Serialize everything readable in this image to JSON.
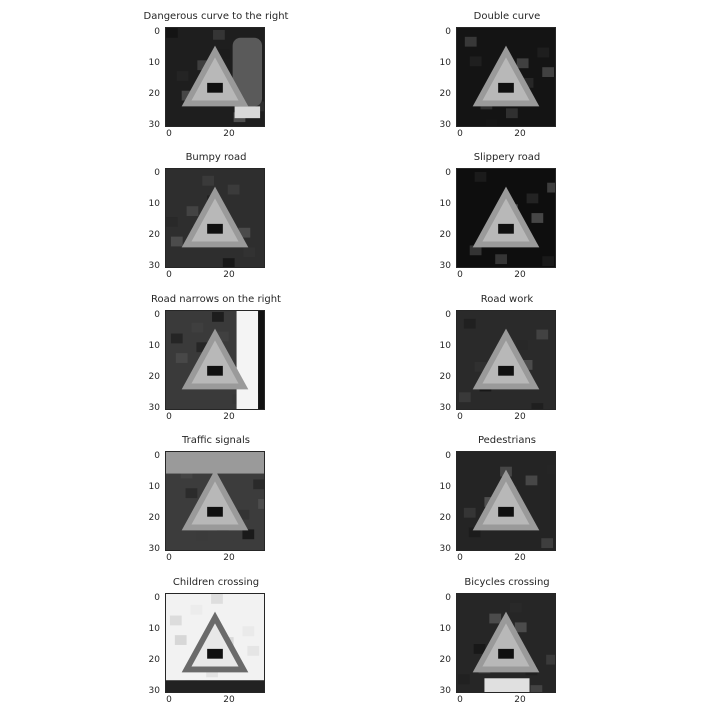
{
  "axis": {
    "y_ticks": [
      "0",
      "10",
      "20",
      "30"
    ],
    "x_ticks": [
      "0",
      "20"
    ]
  },
  "panels": [
    {
      "title": "Dangerous curve to the right",
      "bg": "#1e1e1e",
      "glyph": "curve-right"
    },
    {
      "title": "Double curve",
      "bg": "#141414",
      "glyph": "double-curve"
    },
    {
      "title": "Bumpy road",
      "bg": "#2e2e2e",
      "glyph": "bumpy-road"
    },
    {
      "title": "Slippery road",
      "bg": "#0e0e0e",
      "glyph": "slippery-road"
    },
    {
      "title": "Road narrows on the right",
      "bg": "#3a3a3a",
      "glyph": "road-narrows"
    },
    {
      "title": "Road work",
      "bg": "#2a2a2a",
      "glyph": "road-work"
    },
    {
      "title": "Traffic signals",
      "bg": "#3c3c3c",
      "glyph": "traffic-signals"
    },
    {
      "title": "Pedestrians",
      "bg": "#242424",
      "glyph": "pedestrian"
    },
    {
      "title": "Children crossing",
      "bg": "#f2f2f2",
      "glyph": "children"
    },
    {
      "title": "Bicycles crossing",
      "bg": "#262626",
      "glyph": "bicycle"
    }
  ]
}
